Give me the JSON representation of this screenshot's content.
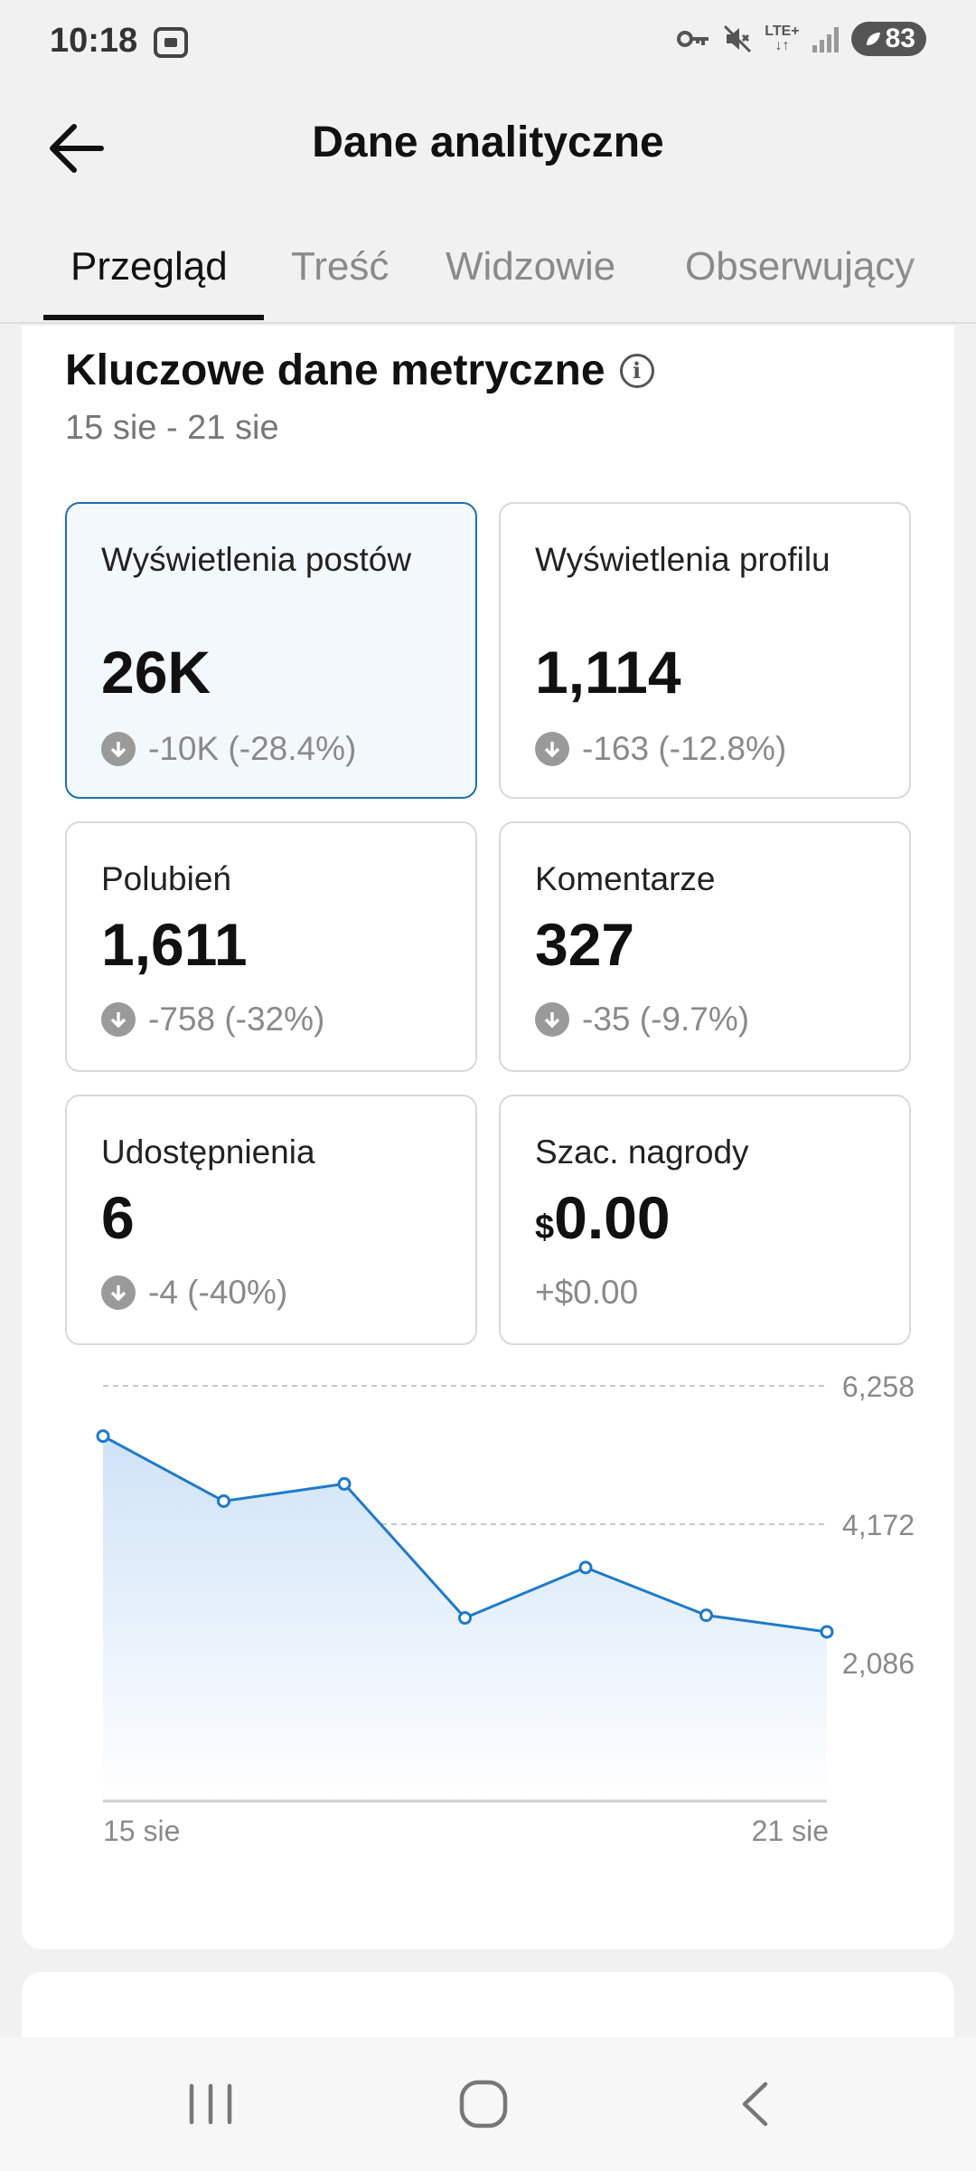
{
  "status_bar": {
    "time": "10:18",
    "network": "LTE+",
    "battery": "83",
    "icons": [
      "screenshot-icon",
      "vpn-key-icon",
      "mute-icon",
      "lte-icon",
      "signal-icon",
      "battery-icon"
    ]
  },
  "header": {
    "title": "Dane analityczne",
    "back_icon": "arrow-left-icon"
  },
  "tabs": [
    {
      "label": "Przegląd",
      "active": true
    },
    {
      "label": "Treść",
      "active": false
    },
    {
      "label": "Widzowie",
      "active": false
    },
    {
      "label": "Obserwujący",
      "active": false
    }
  ],
  "section": {
    "title": "Kluczowe dane metryczne",
    "info_icon": "info-icon",
    "date_range": "15 sie - 21 sie"
  },
  "metrics": [
    {
      "label": "Wyświetlenia postów",
      "value": "26K",
      "change": "-10K (-28.4%)",
      "selected": true
    },
    {
      "label": "Wyświetlenia profilu",
      "value": "1,114",
      "change": "-163 (-12.8%)",
      "selected": false
    },
    {
      "label": "Polubień",
      "value": "1,611",
      "change": "-758 (-32%)",
      "selected": false
    },
    {
      "label": "Komentarze",
      "value": "327",
      "change": "-35 (-9.7%)",
      "selected": false
    },
    {
      "label": "Udostępnienia",
      "value": "6",
      "change": "-4 (-40%)",
      "selected": false
    },
    {
      "label": "Szac. nagrody",
      "currency": "$",
      "value": "0.00",
      "change": "+$0.00",
      "selected": false
    }
  ],
  "chart_data": {
    "type": "area",
    "title": "",
    "xlabel": "",
    "ylabel": "",
    "x": [
      "15 sie",
      "16 sie",
      "17 sie",
      "18 sie",
      "19 sie",
      "20 sie",
      "21 sie"
    ],
    "x_tick_labels": [
      "15 sie",
      "21 sie"
    ],
    "y_ticks": [
      2086,
      4172,
      6258
    ],
    "y_tick_labels": [
      "2,086",
      "4,172",
      "6,258"
    ],
    "ylim": [
      0,
      6258
    ],
    "series": [
      {
        "values": [
          5500,
          4520,
          4780,
          2760,
          3520,
          2800,
          2550
        ]
      }
    ],
    "grid": true,
    "color": "#1f7ac8",
    "fill": "#d3e6f8"
  },
  "navigation_bar": {
    "icons": [
      "recent-apps-icon",
      "home-icon",
      "back-icon"
    ]
  }
}
